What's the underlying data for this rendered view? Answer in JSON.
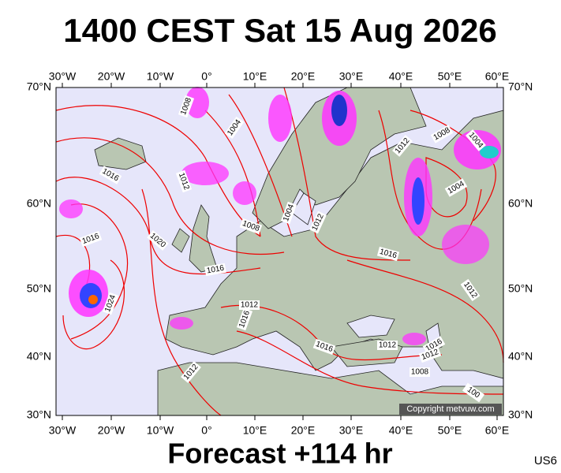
{
  "title": "1400 CEST Sat 15 Aug 2026",
  "footer": "Forecast +114 hr",
  "code": "US6",
  "copyright": "Copyright metvuw.com",
  "lon_labels": [
    "30°W",
    "20°W",
    "10°W",
    "0°",
    "10°E",
    "20°E",
    "30°E",
    "40°E",
    "50°E",
    "60°E"
  ],
  "lat_labels": [
    "70°N",
    "60°N",
    "50°N",
    "40°N",
    "30°N"
  ],
  "isobar_labels": [
    "1008",
    "1004",
    "1016",
    "1012",
    "1016",
    "1020",
    "1016",
    "1024",
    "1008",
    "1004",
    "1012",
    "1012",
    "1008",
    "1004",
    "1004",
    "1016",
    "1012",
    "1012",
    "1016",
    "1016",
    "1012",
    "1016",
    "1012",
    "1008",
    "1012",
    "100"
  ]
}
